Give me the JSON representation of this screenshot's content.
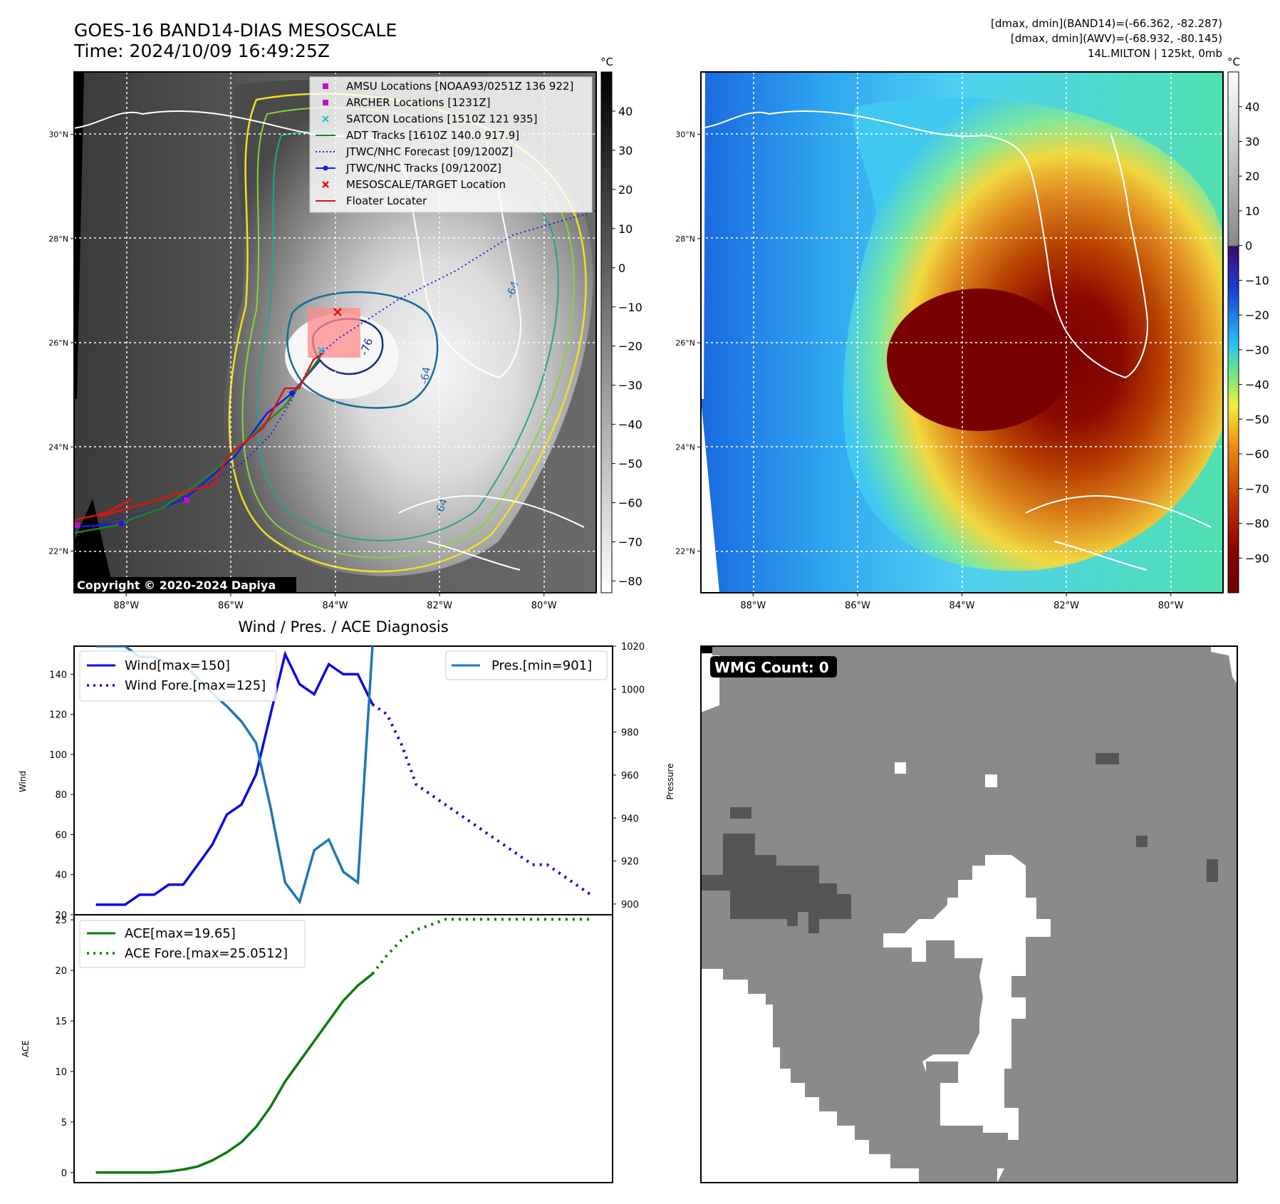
{
  "header": {
    "title_line1": "GOES-16 BAND14-DIAS MESOSCALE",
    "title_line2": "Time: 2024/10/09 16:49:25Z",
    "info_line1": "[dmax, dmin](BAND14)=(-66.362, -82.287)",
    "info_line2": "[dmax, dmin](AWV)=(-68.932, -80.145)",
    "info_line3": "14L.MILTON | 125kt, 0mb"
  },
  "map_axes": {
    "lon_labels": [
      "88°W",
      "86°W",
      "84°W",
      "82°W",
      "80°W"
    ],
    "lon_values": [
      -88,
      -86,
      -84,
      -82,
      -80
    ],
    "lat_labels": [
      "30°N",
      "28°N",
      "26°N",
      "24°N",
      "22°N"
    ],
    "lat_values": [
      30,
      28,
      26,
      24,
      22
    ],
    "lon_range": [
      -89,
      -79
    ],
    "lat_range": [
      21.2,
      31.2
    ]
  },
  "left_colorbar": {
    "unit": "°C",
    "ticks": [
      "40",
      "30",
      "20",
      "10",
      "0",
      "−10",
      "−20",
      "−30",
      "−40",
      "−50",
      "−60",
      "−70",
      "−80"
    ],
    "tick_values": [
      40,
      30,
      20,
      10,
      0,
      -10,
      -20,
      -30,
      -40,
      -50,
      -60,
      -70,
      -80
    ],
    "range": [
      -83,
      50
    ]
  },
  "right_colorbar": {
    "unit": "°C",
    "ticks": [
      "40",
      "30",
      "20",
      "10",
      "0",
      "−10",
      "−20",
      "−30",
      "−40",
      "−50",
      "−60",
      "−70",
      "−80",
      "−90"
    ],
    "tick_values": [
      40,
      30,
      20,
      10,
      0,
      -10,
      -20,
      -30,
      -40,
      -50,
      -60,
      -70,
      -80,
      -90
    ],
    "range": [
      -100,
      50
    ]
  },
  "legend": {
    "items": [
      {
        "label": "AMSU Locations [NOAA93/0251Z 136 922]",
        "color": "#c010c0",
        "kind": "square"
      },
      {
        "label": "ARCHER Locations [1231Z]",
        "color": "#c010c0",
        "kind": "square"
      },
      {
        "label": "SATCON Locations [1510Z 121 935]",
        "color": "#20c0c0",
        "kind": "x"
      },
      {
        "label": "ADT Tracks [1610Z 140.0 917.9]",
        "color": "#1a8a1a",
        "kind": "line"
      },
      {
        "label": "JTWC/NHC Forecast [09/1200Z]",
        "color": "#1a1adc",
        "kind": "dotted"
      },
      {
        "label": "JTWC/NHC Tracks [09/1200Z]",
        "color": "#1a1adc",
        "kind": "line-dot"
      },
      {
        "label": "MESOSCALE/TARGET Location",
        "color": "#e01010",
        "kind": "x"
      },
      {
        "label": "Floater Locater",
        "color": "#e01010",
        "kind": "line"
      }
    ]
  },
  "contour_labels": [
    "-64",
    "-76",
    "-64",
    "-64"
  ],
  "copyright": "Copyright © 2020-2024 Dapiya",
  "diagnosis_title": "Wind / Pres. / ACE Diagnosis",
  "wmg_label": "WMG Count: 0",
  "chart_data": [
    {
      "type": "line",
      "title": "Wind / Pres. / ACE Diagnosis",
      "xlabel": "",
      "ylabel": "Wind",
      "ylabel_right": "Pressure",
      "ylim": [
        20,
        154
      ],
      "ylim_right": [
        895,
        1020
      ],
      "yticks": [
        20,
        40,
        60,
        80,
        100,
        120,
        140
      ],
      "yticks_right": [
        900,
        920,
        940,
        960,
        980,
        1000,
        1020
      ],
      "legend_left": [
        "Wind[max=150]",
        "Wind Fore.[max=125]"
      ],
      "legend_right": [
        "Pres.[min=901]"
      ],
      "series": [
        {
          "name": "Wind[max=150]",
          "style": "solid",
          "color": "#0a0ae6",
          "axis": "left",
          "x": [
            0,
            1,
            2,
            3,
            4,
            5,
            6,
            7,
            8,
            9,
            10,
            11,
            12,
            13,
            14,
            15,
            16,
            17,
            18,
            19
          ],
          "values": [
            25,
            25,
            25,
            30,
            30,
            35,
            35,
            45,
            55,
            70,
            75,
            90,
            120,
            150,
            135,
            130,
            145,
            140,
            140,
            125
          ]
        },
        {
          "name": "Wind Fore.[max=125]",
          "style": "dotted",
          "color": "#0a0ae6",
          "axis": "left",
          "x": [
            19,
            20,
            21,
            22,
            23,
            24,
            25,
            26,
            27,
            28,
            29,
            30,
            31,
            32,
            33,
            34
          ],
          "values": [
            125,
            120,
            105,
            85,
            80,
            75,
            70,
            65,
            60,
            55,
            50,
            45,
            45,
            40,
            35,
            30
          ]
        },
        {
          "name": "Pres.[min=901]",
          "style": "solid",
          "color": "#1f77b4",
          "axis": "right",
          "x": [
            0,
            1,
            2,
            3,
            4,
            5,
            6,
            7,
            8,
            9,
            10,
            11,
            12,
            13,
            14,
            15,
            16,
            17,
            18,
            19
          ],
          "values": [
            1020,
            1020,
            1020,
            1015,
            1015,
            1012,
            1012,
            1005,
            998,
            992,
            985,
            975,
            945,
            910,
            901,
            925,
            930,
            915,
            910,
            1020
          ]
        }
      ]
    },
    {
      "type": "line",
      "xlabel": "",
      "ylabel": "ACE",
      "ylim": [
        -1,
        25.5
      ],
      "yticks": [
        0,
        5,
        10,
        15,
        20,
        25
      ],
      "legend": [
        "ACE[max=19.65]",
        "ACE Fore.[max=25.0512]"
      ],
      "series": [
        {
          "name": "ACE[max=19.65]",
          "style": "solid",
          "color": "#0a7d0a",
          "x": [
            0,
            1,
            2,
            3,
            4,
            5,
            6,
            7,
            8,
            9,
            10,
            11,
            12,
            13,
            14,
            15,
            16,
            17,
            18,
            19
          ],
          "values": [
            0,
            0,
            0,
            0,
            0,
            0.1,
            0.3,
            0.6,
            1.2,
            2,
            3,
            4.5,
            6.5,
            9,
            11,
            13,
            15,
            17,
            18.5,
            19.65
          ]
        },
        {
          "name": "ACE Fore.[max=25.0512]",
          "style": "dotted",
          "color": "#0a7d0a",
          "x": [
            19,
            20,
            21,
            22,
            23,
            24,
            25,
            26,
            27,
            28,
            29,
            30,
            31,
            32,
            33,
            34
          ],
          "values": [
            19.65,
            21.5,
            23,
            24,
            24.5,
            25.0512,
            25.0512,
            25.0512,
            25.0512,
            25.0512,
            25.0512,
            25.0512,
            25.0512,
            25.0512,
            25.0512,
            25.0512
          ]
        }
      ]
    }
  ]
}
